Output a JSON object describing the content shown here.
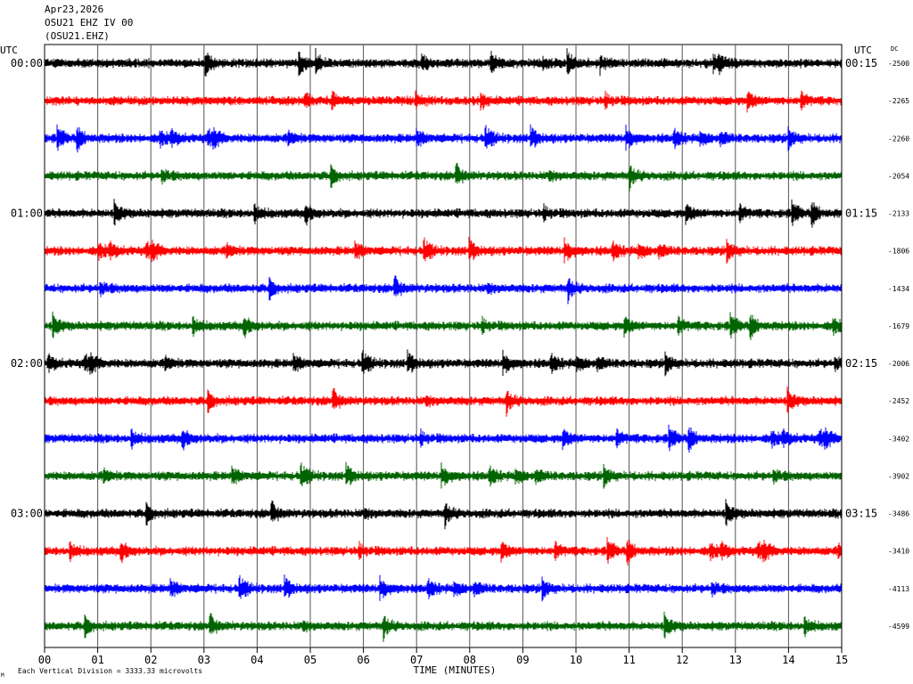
{
  "header": {
    "date": "Apr23,2026",
    "station_line": "OSU21 EHZ IV 00",
    "station_code": "(OSU21.EHZ)"
  },
  "left_axis": {
    "title": "UTC"
  },
  "right_axis": {
    "title": "UTC",
    "dc_label": "DC"
  },
  "footer": {
    "scale_note": "Each Vertical Division = 3333.33 microvolts",
    "corner_mark": "M"
  },
  "colors": {
    "trace_cycle": [
      "#000000",
      "#ff0000",
      "#0000ff",
      "#006400"
    ],
    "grid": "#000000"
  },
  "chart_data": {
    "type": "line",
    "xlabel": "TIME (MINUTES)",
    "xlim": [
      0,
      15
    ],
    "x_ticks": [
      "00",
      "01",
      "02",
      "03",
      "04",
      "05",
      "06",
      "07",
      "08",
      "09",
      "10",
      "11",
      "12",
      "13",
      "14",
      "15"
    ],
    "left_time_labels": [
      "00:00",
      "01:00",
      "02:00",
      "03:00"
    ],
    "right_time_labels": [
      "00:15",
      "01:15",
      "02:15",
      "03:15"
    ],
    "grid": true,
    "series": [
      {
        "dc": "-2500"
      },
      {
        "dc": "-2265"
      },
      {
        "dc": "-2260"
      },
      {
        "dc": "-2054"
      },
      {
        "dc": "-2133"
      },
      {
        "dc": "-1806"
      },
      {
        "dc": "-1434"
      },
      {
        "dc": "-1679"
      },
      {
        "dc": "-2006"
      },
      {
        "dc": "-2452"
      },
      {
        "dc": "-3402"
      },
      {
        "dc": "-3902"
      },
      {
        "dc": "-3486"
      },
      {
        "dc": "-3410"
      },
      {
        "dc": "-4113"
      },
      {
        "dc": "-4599"
      }
    ]
  }
}
